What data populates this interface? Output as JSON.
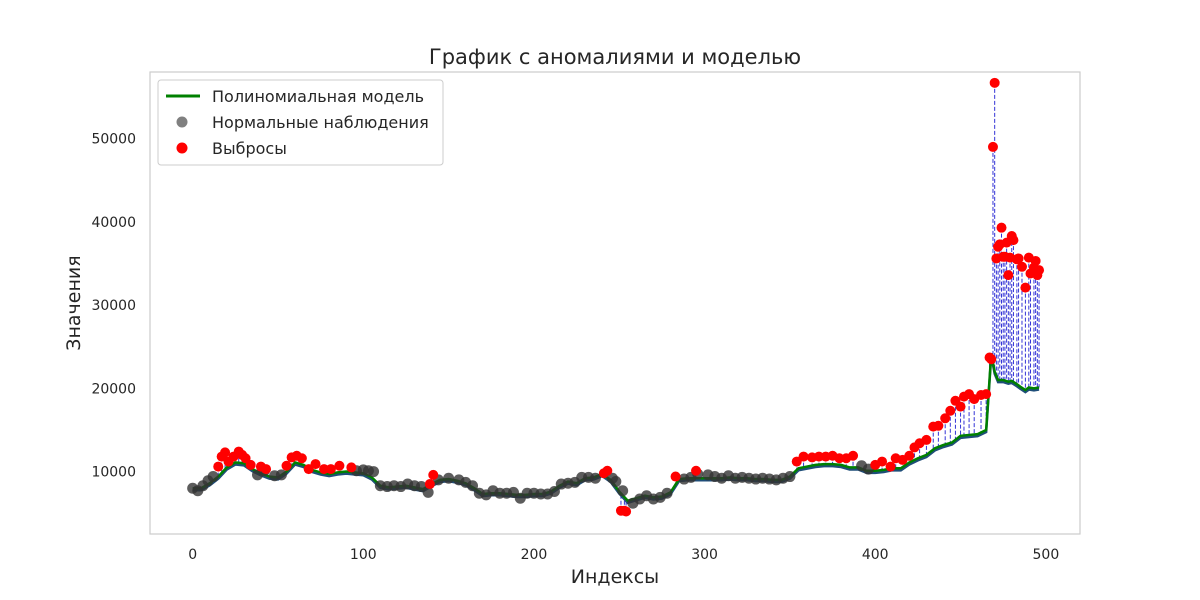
{
  "chart_data": {
    "type": "scatter",
    "title": "График с аномалиями и моделью",
    "xlabel": "Индексы",
    "ylabel": "Значения",
    "xlim": [
      -25,
      520
    ],
    "ylim": [
      2500,
      58000
    ],
    "x_ticks": [
      0,
      100,
      200,
      300,
      400,
      500
    ],
    "y_ticks": [
      10000,
      20000,
      30000,
      40000,
      50000
    ],
    "x_tick_labels": [
      "0",
      "100",
      "200",
      "300",
      "400",
      "500"
    ],
    "y_tick_labels": [
      "10000",
      "20000",
      "30000",
      "40000",
      "50000"
    ],
    "grid": false,
    "legend_position": "top-left",
    "legend": [
      {
        "label": "Полиномиальная модель",
        "kind": "line",
        "color": "#008000"
      },
      {
        "label": "Нормальные наблюдения",
        "kind": "marker",
        "color": "#555555"
      },
      {
        "label": "Выбросы",
        "kind": "marker",
        "color": "#ff0000"
      }
    ],
    "colors": {
      "model_line": "#008000",
      "normal_points": "#333333",
      "outliers": "#ff0000",
      "residual_lines": "#0000cc",
      "underlying_series": "#1f4e79"
    },
    "series": [
      {
        "name": "Полиномиальная модель",
        "kind": "line",
        "x": [
          0,
          5,
          10,
          15,
          20,
          25,
          30,
          35,
          40,
          45,
          50,
          55,
          60,
          65,
          70,
          75,
          80,
          85,
          90,
          95,
          100,
          105,
          110,
          115,
          120,
          125,
          130,
          135,
          140,
          145,
          150,
          155,
          160,
          165,
          170,
          175,
          180,
          185,
          190,
          195,
          200,
          205,
          210,
          215,
          220,
          225,
          230,
          235,
          240,
          245,
          250,
          255,
          260,
          265,
          270,
          275,
          280,
          285,
          290,
          295,
          300,
          305,
          310,
          315,
          320,
          325,
          330,
          335,
          340,
          345,
          350,
          355,
          360,
          365,
          370,
          375,
          380,
          385,
          390,
          395,
          400,
          405,
          410,
          415,
          420,
          425,
          430,
          435,
          440,
          445,
          450,
          455,
          460,
          465,
          468,
          470,
          472,
          475,
          478,
          480,
          483,
          485,
          488,
          490,
          493,
          496
        ],
        "y": [
          8000,
          8000,
          8600,
          9400,
          10500,
          11100,
          11000,
          10300,
          9800,
          9400,
          9300,
          10000,
          11100,
          10800,
          10200,
          9900,
          9700,
          9900,
          10000,
          9900,
          9800,
          9300,
          8300,
          8100,
          8200,
          8300,
          8100,
          7900,
          8500,
          9000,
          9100,
          8900,
          8600,
          8000,
          7300,
          7400,
          7400,
          7300,
          7200,
          7200,
          7300,
          7300,
          7600,
          8300,
          8800,
          8600,
          9200,
          9300,
          9700,
          9000,
          7600,
          6500,
          6800,
          7100,
          6900,
          7000,
          7500,
          9100,
          9200,
          9200,
          9200,
          9200,
          9200,
          9300,
          9200,
          9200,
          9100,
          9100,
          9000,
          9000,
          9400,
          10400,
          10600,
          10800,
          10900,
          10900,
          10800,
          10500,
          10500,
          10100,
          10100,
          10200,
          10400,
          10400,
          11100,
          11600,
          12000,
          12800,
          13200,
          13500,
          14300,
          14400,
          14500,
          15000,
          24200,
          22000,
          21000,
          21000,
          20800,
          20900,
          20500,
          20200,
          19800,
          20100,
          20000,
          20100
        ]
      },
      {
        "name": "Нормальные наблюдения",
        "kind": "scatter",
        "x": [
          0,
          3,
          6,
          9,
          12,
          38,
          42,
          48,
          52,
          96,
          100,
          103,
          106,
          110,
          114,
          118,
          122,
          126,
          130,
          134,
          138,
          144,
          150,
          156,
          160,
          164,
          168,
          172,
          176,
          180,
          184,
          188,
          192,
          196,
          200,
          204,
          208,
          212,
          216,
          220,
          224,
          228,
          232,
          236,
          246,
          248,
          252,
          258,
          262,
          266,
          270,
          274,
          278,
          288,
          292,
          296,
          302,
          306,
          310,
          314,
          318,
          322,
          326,
          330,
          334,
          338,
          342,
          346,
          350,
          392,
          396
        ],
        "y": [
          8000,
          7700,
          8300,
          8900,
          9400,
          9600,
          10100,
          9500,
          9600,
          10100,
          10200,
          10100,
          10000,
          8300,
          8200,
          8300,
          8200,
          8500,
          8300,
          8200,
          7500,
          9000,
          9200,
          9000,
          8700,
          8300,
          7400,
          7200,
          7700,
          7400,
          7400,
          7500,
          6800,
          7400,
          7400,
          7300,
          7300,
          7600,
          8500,
          8600,
          8700,
          9300,
          9300,
          9200,
          9200,
          8800,
          7700,
          6200,
          6700,
          7100,
          6700,
          6900,
          7400,
          9100,
          9300,
          9700,
          9600,
          9400,
          9200,
          9500,
          9200,
          9300,
          9200,
          9100,
          9200,
          9100,
          9000,
          9200,
          9400,
          10700,
          10300
        ]
      },
      {
        "name": "Выбросы",
        "kind": "scatter",
        "x": [
          15,
          17,
          19,
          21,
          24,
          27,
          29,
          31,
          34,
          40,
          43,
          55,
          58,
          61,
          64,
          68,
          72,
          77,
          81,
          86,
          93,
          139,
          141,
          241,
          243,
          251,
          253,
          254,
          283,
          295,
          354,
          358,
          363,
          367,
          371,
          375,
          379,
          383,
          387,
          400,
          404,
          409,
          412,
          416,
          420,
          423,
          426,
          430,
          434,
          437,
          441,
          444,
          447,
          450,
          452,
          455,
          458,
          462,
          465,
          467,
          468,
          469,
          470,
          471,
          472,
          473,
          474,
          475,
          476,
          477,
          478,
          479,
          480,
          481,
          483,
          484,
          486,
          488,
          490,
          491,
          493,
          494,
          495,
          496
        ],
        "y": [
          10600,
          11800,
          12300,
          11200,
          11800,
          12400,
          12000,
          11600,
          10800,
          10600,
          10300,
          10700,
          11700,
          11900,
          11600,
          10300,
          10900,
          10300,
          10300,
          10700,
          10500,
          8500,
          9600,
          9800,
          10100,
          5300,
          5300,
          5200,
          9400,
          10100,
          11200,
          11800,
          11700,
          11800,
          11800,
          11900,
          11600,
          11600,
          11900,
          10800,
          11200,
          10600,
          11600,
          11400,
          11900,
          12900,
          13400,
          13800,
          15400,
          15500,
          16400,
          17300,
          18500,
          17800,
          19000,
          19300,
          18700,
          19200,
          19300,
          23700,
          23500,
          49000,
          56700,
          35600,
          37000,
          37300,
          39300,
          35800,
          35800,
          37500,
          33600,
          35700,
          38300,
          37800,
          35500,
          35600,
          34600,
          32100,
          35700,
          33800,
          34500,
          35300,
          33600,
          34200
        ]
      }
    ]
  }
}
